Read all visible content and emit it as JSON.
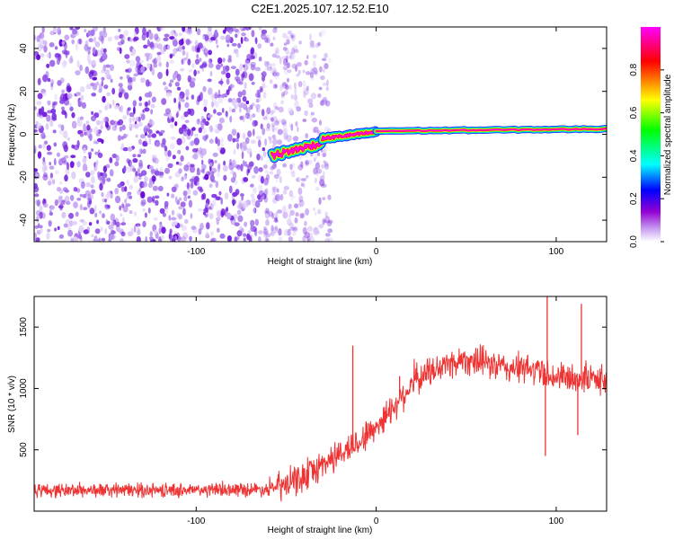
{
  "figure": {
    "title": "C2E1.2025.107.12.52.E10"
  },
  "chart_data": [
    {
      "type": "heatmap",
      "title": "C2E1.2025.107.12.52.E10",
      "xlabel": "Height of straight line (km)",
      "ylabel": "Frequency (Hz)",
      "xlim": [
        -190,
        128
      ],
      "ylim": [
        -50,
        50
      ],
      "xticks": [
        -100,
        0,
        100
      ],
      "yticks": [
        -40,
        -20,
        0,
        20,
        40
      ],
      "colorbar": {
        "label": "Normalized spectral amplitude",
        "range": [
          0,
          1
        ],
        "ticks": [
          "0.0",
          "0.2",
          "0.4",
          "0.6",
          "0.8"
        ],
        "colormap": [
          "#ffffff",
          "#9400d3",
          "#0000ff",
          "#00ffff",
          "#00ff00",
          "#ffff00",
          "#ff0000",
          "#ff00ff"
        ]
      },
      "features": {
        "noise_region_x": [
          -190,
          -25
        ],
        "line_segments": [
          {
            "x_from": -58,
            "x_to": -30,
            "y_from": -10,
            "y_to": -4
          },
          {
            "x_from": -30,
            "x_to": 0,
            "y_from": -2,
            "y_to": 1
          },
          {
            "x_from": 0,
            "x_to": 128,
            "y_from": 1.5,
            "y_to": 2.5
          }
        ]
      }
    },
    {
      "type": "line",
      "xlabel": "Height of straight line (km)",
      "ylabel": "SNR (10 * v/v)",
      "xlim": [
        -190,
        128
      ],
      "ylim": [
        0,
        1750
      ],
      "xticks": [
        -100,
        0,
        100
      ],
      "yticks": [
        500,
        1000,
        1500
      ],
      "color": "#ee3333",
      "series": [
        {
          "x": [
            -190,
            -160,
            -130,
            -100,
            -80,
            -60,
            -50,
            -40,
            -30,
            -20,
            -10,
            0,
            10,
            20,
            30,
            40,
            50,
            60,
            70,
            80,
            90,
            100,
            110,
            120,
            128
          ],
          "y": [
            170,
            170,
            170,
            170,
            175,
            180,
            210,
            280,
            380,
            470,
            560,
            690,
            860,
            1040,
            1140,
            1200,
            1240,
            1210,
            1170,
            1160,
            1150,
            1090,
            1080,
            1080,
            1080
          ]
        }
      ],
      "spikes": [
        {
          "x": -13,
          "y": 1350
        },
        {
          "x": 13,
          "y": 1100
        },
        {
          "x": 95,
          "y": 1760
        },
        {
          "x": 94,
          "y": 450
        },
        {
          "x": 114,
          "y": 1690
        },
        {
          "x": 112,
          "y": 620
        }
      ]
    }
  ]
}
